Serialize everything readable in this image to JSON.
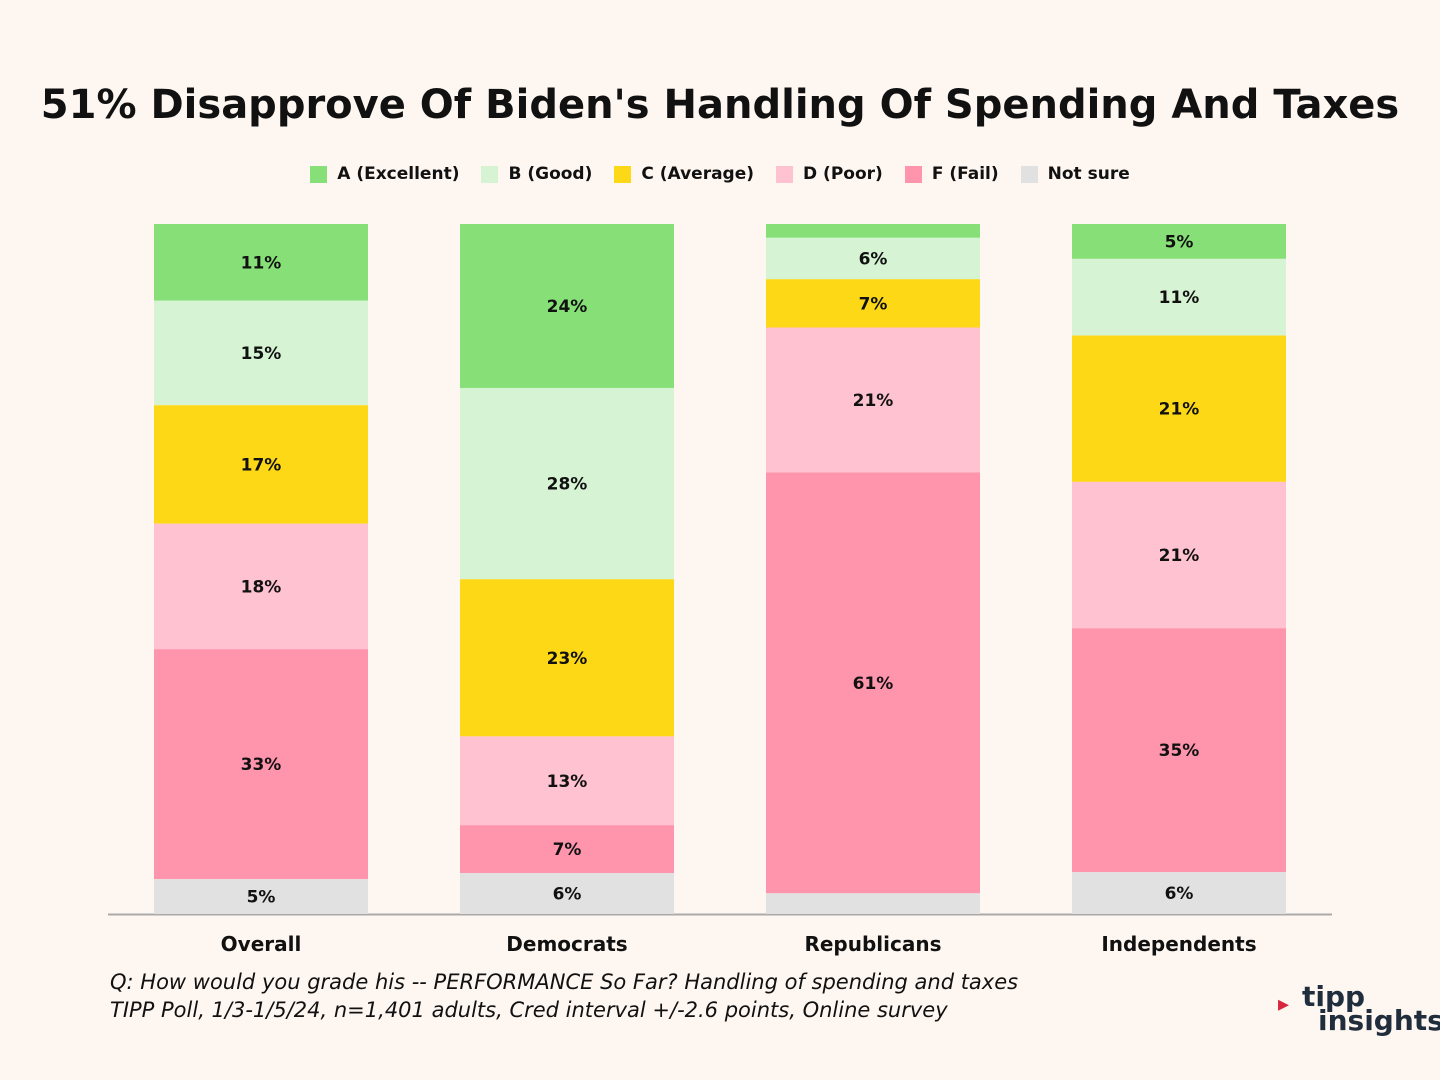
{
  "title": "51% Disapprove Of Biden's Handling Of Spending And Taxes",
  "footnote": {
    "line1": "Q:  How would you grade his -- PERFORMANCE So Far? Handling  of spending and taxes",
    "line2": "TIPP Poll, 1/3-1/5/24, n=1,401 adults, Cred interval +/-2.6 points, Online survey"
  },
  "logo": {
    "line1": "tipp",
    "line2": "insights"
  },
  "chart_data": {
    "type": "bar",
    "stacked": true,
    "title": "51% Disapprove Of Biden's Handling Of Spending And Taxes",
    "legend_position": "top",
    "categories": [
      "Overall",
      "Democrats",
      "Republicans",
      "Independents"
    ],
    "ylim": [
      0,
      100
    ],
    "series": [
      {
        "name": "A (Excellent)",
        "color": "#87df77",
        "values": [
          11,
          24,
          2,
          5
        ],
        "labels": [
          "11%",
          "24%",
          "",
          "5%"
        ]
      },
      {
        "name": "B (Good)",
        "color": "#d6f3d3",
        "values": [
          15,
          28,
          6,
          11
        ],
        "labels": [
          "15%",
          "28%",
          "6%",
          "11%"
        ]
      },
      {
        "name": "C (Average)",
        "color": "#fdd816",
        "values": [
          17,
          23,
          7,
          21
        ],
        "labels": [
          "17%",
          "23%",
          "7%",
          "21%"
        ]
      },
      {
        "name": "D (Poor)",
        "color": "#ffc2d0",
        "values": [
          18,
          13,
          21,
          21
        ],
        "labels": [
          "18%",
          "13%",
          "21%",
          "21%"
        ]
      },
      {
        "name": "F (Fail)",
        "color": "#ff94ad",
        "values": [
          33,
          7,
          61,
          35
        ],
        "labels": [
          "33%",
          "7%",
          "61%",
          "35%"
        ]
      },
      {
        "name": "Not sure",
        "color": "#e1e1e1",
        "values": [
          5,
          6,
          3,
          6
        ],
        "labels": [
          "5%",
          "6%",
          "",
          "6%"
        ]
      }
    ]
  }
}
